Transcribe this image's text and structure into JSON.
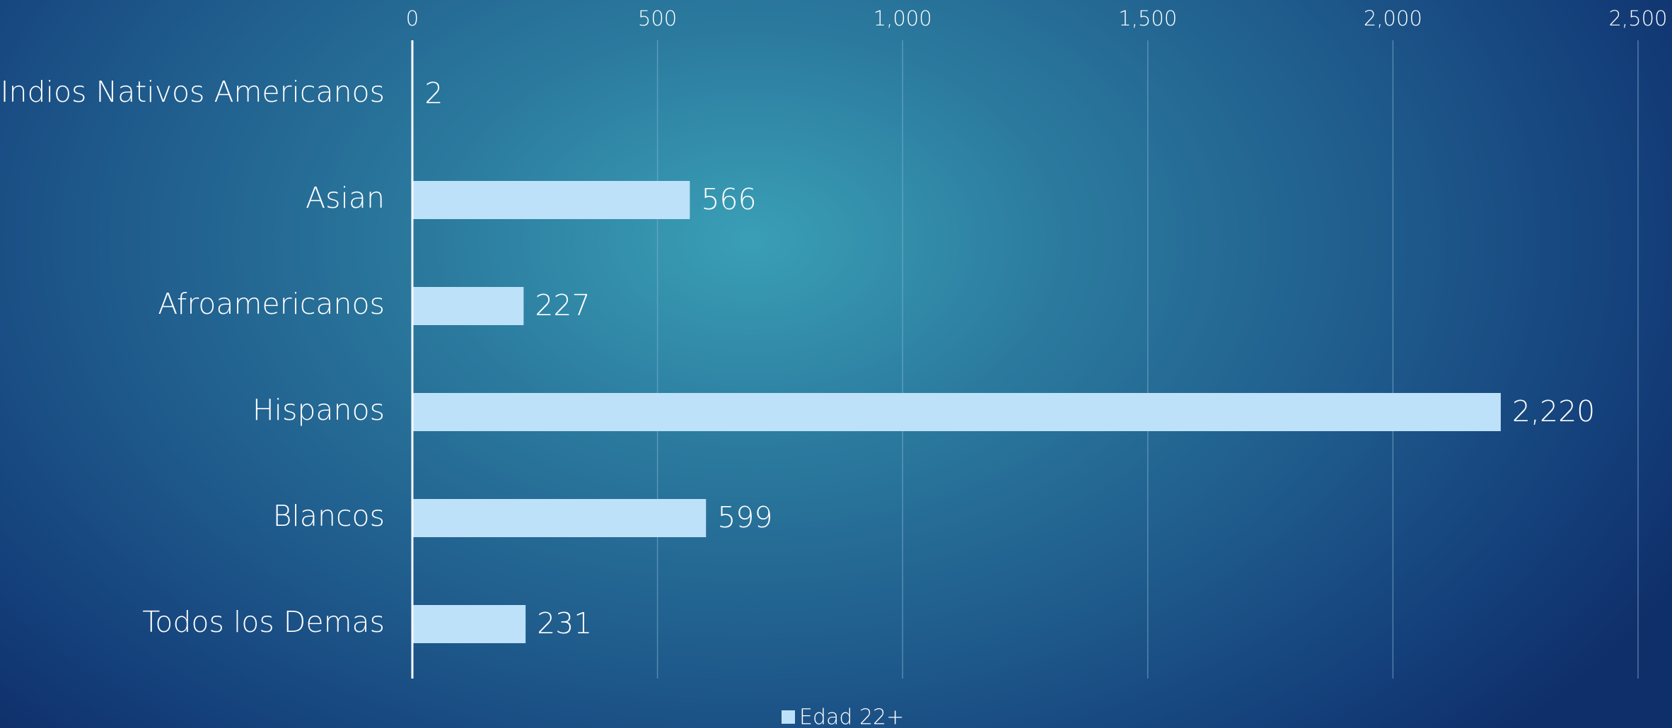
{
  "chart_data": {
    "type": "bar",
    "orientation": "horizontal",
    "categories": [
      "Indios Nativos Americanos",
      "Asian",
      "Afroamericanos",
      "Hispanos",
      "Blancos",
      "Todos los Demas"
    ],
    "series": [
      {
        "name": "Edad 22+",
        "values": [
          2,
          566,
          227,
          2220,
          599,
          231
        ]
      }
    ],
    "data_labels": [
      "2",
      "566",
      "227",
      "2,220",
      "599",
      "231"
    ],
    "x_ticks": [
      0,
      500,
      1000,
      1500,
      2000,
      2500
    ],
    "x_tick_labels": [
      "0",
      "500",
      "1,000",
      "1,500",
      "2,000",
      "2,500"
    ],
    "xlim": [
      0,
      2500
    ],
    "x_axis_position": "top",
    "grid": true,
    "legend_position": "bottom",
    "bar_color": "#bde1f8",
    "gridline_color": "#7fb0cf",
    "axis_color": "#ffffff"
  }
}
